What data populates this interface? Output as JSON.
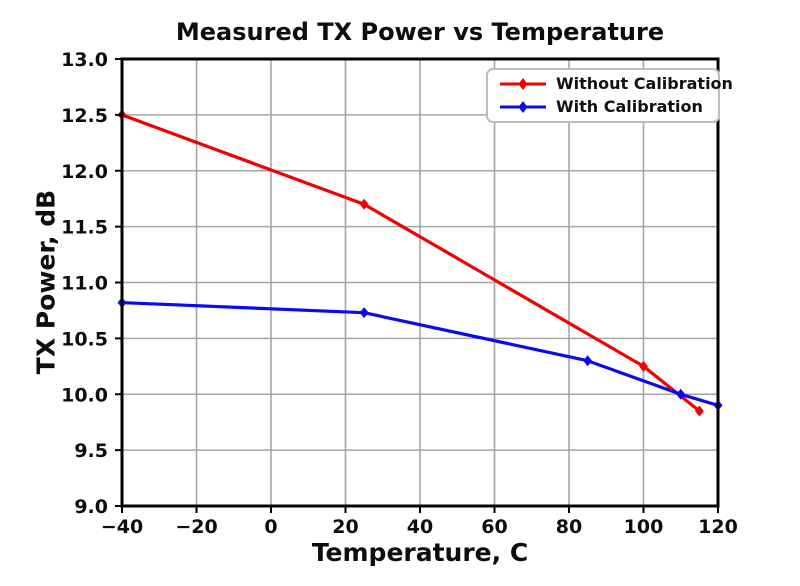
{
  "chart_data": {
    "type": "line",
    "title": "Measured TX Power vs Temperature",
    "xlabel": "Temperature, C",
    "ylabel": "TX Power, dB",
    "xlim": [
      -40,
      120
    ],
    "ylim": [
      9.0,
      13.0
    ],
    "xticks": [
      -40,
      -20,
      0,
      20,
      40,
      60,
      80,
      100,
      120
    ],
    "yticks": [
      9.0,
      9.5,
      10.0,
      10.5,
      11.0,
      11.5,
      12.0,
      12.5,
      13.0
    ],
    "grid": true,
    "grid_color": "#a6a6a6",
    "axis_color": "#000000",
    "background_color": "#ffffff",
    "legend": {
      "position": "upper-right",
      "border_color": "#bdbdbd"
    },
    "series": [
      {
        "name": "Without Calibration",
        "color": "#f20000",
        "marker": "diamond",
        "points": [
          [
            -40,
            12.5
          ],
          [
            25,
            11.7
          ],
          [
            100,
            10.25
          ],
          [
            115,
            9.85
          ]
        ]
      },
      {
        "name": "With Calibration",
        "color": "#0b0bf0",
        "marker": "diamond",
        "points": [
          [
            -40,
            10.82
          ],
          [
            25,
            10.73
          ],
          [
            85,
            10.3
          ],
          [
            110,
            10.0
          ],
          [
            120,
            9.9
          ]
        ]
      }
    ]
  }
}
